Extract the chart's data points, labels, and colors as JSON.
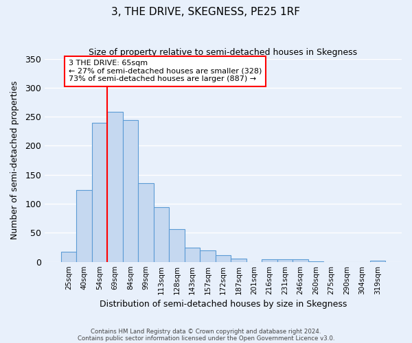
{
  "title": "3, THE DRIVE, SKEGNESS, PE25 1RF",
  "subtitle": "Size of property relative to semi-detached houses in Skegness",
  "xlabel": "Distribution of semi-detached houses by size in Skegness",
  "ylabel": "Number of semi-detached properties",
  "bar_labels": [
    "25sqm",
    "40sqm",
    "54sqm",
    "69sqm",
    "84sqm",
    "99sqm",
    "113sqm",
    "128sqm",
    "143sqm",
    "157sqm",
    "172sqm",
    "187sqm",
    "201sqm",
    "216sqm",
    "231sqm",
    "246sqm",
    "260sqm",
    "275sqm",
    "290sqm",
    "304sqm",
    "319sqm"
  ],
  "bar_values": [
    17,
    124,
    239,
    259,
    244,
    136,
    94,
    56,
    25,
    20,
    11,
    5,
    0,
    4,
    4,
    4,
    1,
    0,
    0,
    0,
    2
  ],
  "bar_color": "#c5d8f0",
  "bar_edge_color": "#5b9bd5",
  "background_color": "#e8f0fb",
  "grid_color": "#ffffff",
  "annotation_title": "3 THE DRIVE: 65sqm",
  "annotation_line1": "← 27% of semi-detached houses are smaller (328)",
  "annotation_line2": "73% of semi-detached houses are larger (887) →",
  "red_line_bin": 3,
  "ylim": [
    0,
    350
  ],
  "yticks": [
    0,
    50,
    100,
    150,
    200,
    250,
    300,
    350
  ],
  "footer_line1": "Contains HM Land Registry data © Crown copyright and database right 2024.",
  "footer_line2": "Contains public sector information licensed under the Open Government Licence v3.0."
}
